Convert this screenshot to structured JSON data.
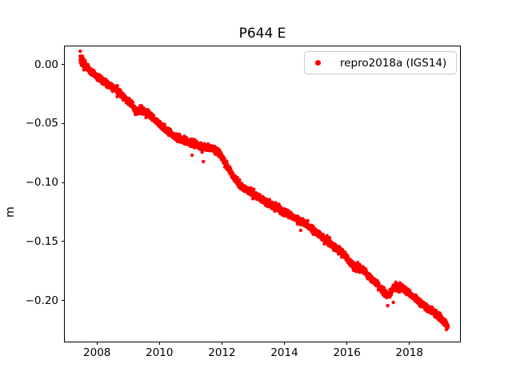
{
  "figure": {
    "background": "#ffffff"
  },
  "chart_data": {
    "type": "scatter",
    "title": "P644 E",
    "ylabel": "m",
    "xlabel": "",
    "grid": false,
    "axes_color": "#000000",
    "xlim": [
      2006.97,
      2019.62
    ],
    "ylim": [
      -0.2348,
      0.0154
    ],
    "xticks": [
      {
        "value": 2008,
        "label": "2008"
      },
      {
        "value": 2010,
        "label": "2010"
      },
      {
        "value": 2012,
        "label": "2012"
      },
      {
        "value": 2014,
        "label": "2014"
      },
      {
        "value": 2016,
        "label": "2016"
      },
      {
        "value": 2018,
        "label": "2018"
      }
    ],
    "yticks": [
      {
        "value": 0.0,
        "label": "0.00"
      },
      {
        "value": -0.05,
        "label": "−0.05"
      },
      {
        "value": -0.1,
        "label": "−0.10"
      },
      {
        "value": -0.15,
        "label": "−0.15"
      },
      {
        "value": -0.2,
        "label": "−0.20"
      }
    ],
    "legend": {
      "location": "upper right",
      "entries": [
        {
          "label": "repro2018a (IGS14)",
          "marker": "dot",
          "color": "#ff0000"
        }
      ]
    },
    "series": [
      {
        "name": "repro2018a (IGS14)",
        "color": "#ff0000",
        "marker_radius_px": 2.2,
        "start_year": 2007.462,
        "end_year": 2019.237,
        "points_per_year": 365,
        "noise_sigma_m": 0.0013,
        "start_burst_years": 0.18,
        "start_burst_sigma_scale": 1.9,
        "seed": 7,
        "waypoints": [
          [
            2007.462,
            0.0045
          ],
          [
            2007.593,
            0.0005
          ],
          [
            2007.722,
            -0.0043
          ],
          [
            2007.851,
            -0.007
          ],
          [
            2007.979,
            -0.0097
          ],
          [
            2008.134,
            -0.0124
          ],
          [
            2008.314,
            -0.0165
          ],
          [
            2008.469,
            -0.0178
          ],
          [
            2008.598,
            -0.0212
          ],
          [
            2008.778,
            -0.0246
          ],
          [
            2008.933,
            -0.0294
          ],
          [
            2009.113,
            -0.0334
          ],
          [
            2009.242,
            -0.0402
          ],
          [
            2009.396,
            -0.0389
          ],
          [
            2009.551,
            -0.0402
          ],
          [
            2009.705,
            -0.0429
          ],
          [
            2009.886,
            -0.0477
          ],
          [
            2010.066,
            -0.0517
          ],
          [
            2010.272,
            -0.0565
          ],
          [
            2010.478,
            -0.0612
          ],
          [
            2010.684,
            -0.0633
          ],
          [
            2010.916,
            -0.0653
          ],
          [
            2011.122,
            -0.068
          ],
          [
            2011.302,
            -0.0694
          ],
          [
            2011.509,
            -0.07
          ],
          [
            2011.715,
            -0.0714
          ],
          [
            2011.921,
            -0.0748
          ],
          [
            2012.127,
            -0.0843
          ],
          [
            2012.281,
            -0.0917
          ],
          [
            2012.436,
            -0.0978
          ],
          [
            2012.59,
            -0.1026
          ],
          [
            2012.745,
            -0.1053
          ],
          [
            2012.9,
            -0.108
          ],
          [
            2013.106,
            -0.1114
          ],
          [
            2013.415,
            -0.1168
          ],
          [
            2013.724,
            -0.1209
          ],
          [
            2014.033,
            -0.1256
          ],
          [
            2014.342,
            -0.1297
          ],
          [
            2014.651,
            -0.1344
          ],
          [
            2014.909,
            -0.1399
          ],
          [
            2015.166,
            -0.1453
          ],
          [
            2015.424,
            -0.1507
          ],
          [
            2015.682,
            -0.1561
          ],
          [
            2015.862,
            -0.1595
          ],
          [
            2016.016,
            -0.165
          ],
          [
            2016.197,
            -0.1704
          ],
          [
            2016.454,
            -0.1731
          ],
          [
            2016.635,
            -0.1772
          ],
          [
            2016.815,
            -0.1819
          ],
          [
            2016.97,
            -0.186
          ],
          [
            2017.15,
            -0.1914
          ],
          [
            2017.33,
            -0.1961
          ],
          [
            2017.536,
            -0.1873
          ],
          [
            2017.742,
            -0.1894
          ],
          [
            2017.948,
            -0.1934
          ],
          [
            2018.129,
            -0.1968
          ],
          [
            2018.309,
            -0.2009
          ],
          [
            2018.464,
            -0.2043
          ],
          [
            2018.67,
            -0.2077
          ],
          [
            2018.876,
            -0.2117
          ],
          [
            2019.03,
            -0.2158
          ],
          [
            2019.159,
            -0.2192
          ],
          [
            2019.237,
            -0.2226
          ]
        ],
        "outliers": [
          [
            2011.044,
            -0.0768
          ],
          [
            2011.405,
            -0.0822
          ],
          [
            2014.522,
            -0.1405
          ],
          [
            2017.304,
            -0.2043
          ],
          [
            2017.485,
            -0.2015
          ],
          [
            2019.185,
            -0.2246
          ]
        ]
      }
    ]
  }
}
